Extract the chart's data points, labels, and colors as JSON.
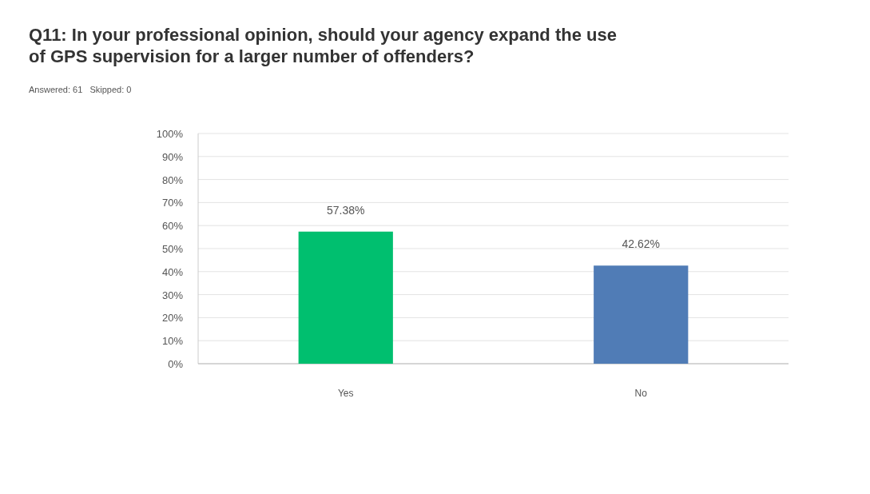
{
  "chart_data": {
    "type": "bar",
    "title": "Q11: In your professional opinion, should your agency expand the use of GPS supervision for a larger number of offenders?",
    "subtitle": "Answered: 61   Skipped: 0",
    "categories": [
      "Yes",
      "No"
    ],
    "values": [
      57.38,
      42.62
    ],
    "colors": [
      "#00bf6f",
      "#507cb6"
    ],
    "value_labels": [
      "57.38%",
      "42.62%"
    ],
    "ylim": [
      0,
      100
    ],
    "yticks": [
      {
        "value": 0,
        "label": "0%"
      },
      {
        "value": 10,
        "label": "10%"
      },
      {
        "value": 20,
        "label": "20%"
      },
      {
        "value": 30,
        "label": "30%"
      },
      {
        "value": 40,
        "label": "40%"
      },
      {
        "value": 50,
        "label": "50%"
      },
      {
        "value": 60,
        "label": "60%"
      },
      {
        "value": 70,
        "label": "70%"
      },
      {
        "value": 80,
        "label": "80%"
      },
      {
        "value": 90,
        "label": "90%"
      },
      {
        "value": 100,
        "label": "100%"
      }
    ],
    "grid": "y"
  }
}
